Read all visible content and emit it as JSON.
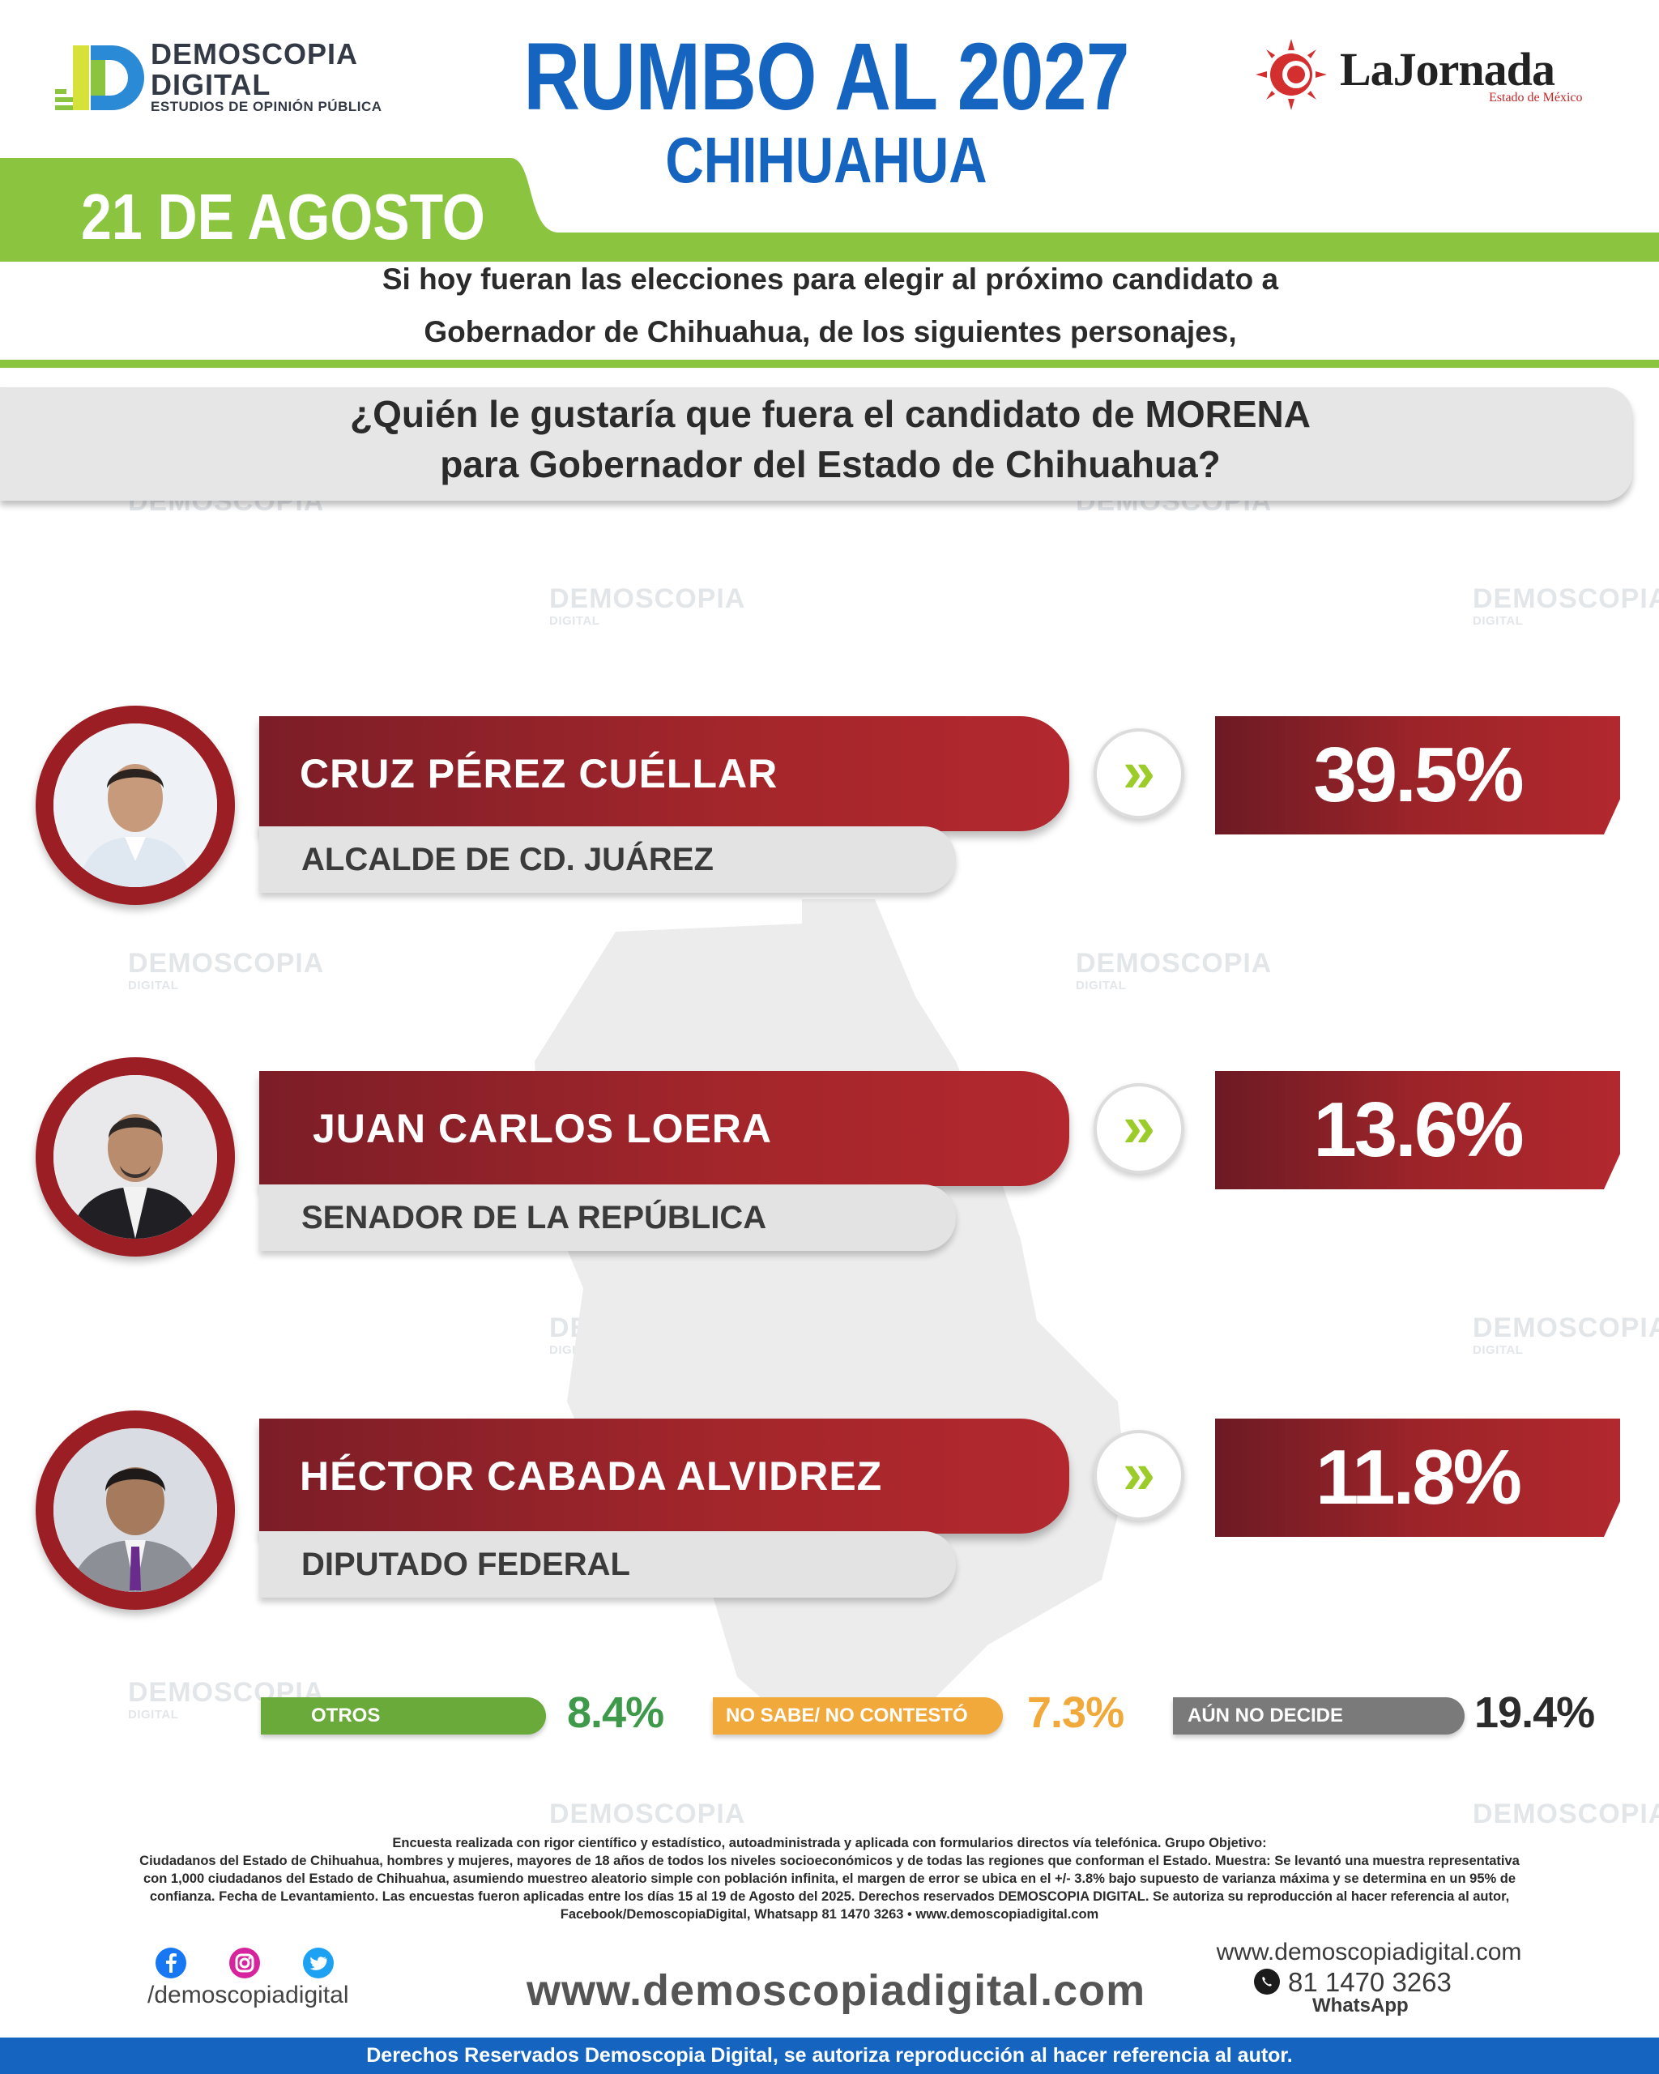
{
  "header": {
    "brand_name_line1": "DEMOSCOPIA",
    "brand_name_line2": "DIGITAL",
    "brand_tagline": "ESTUDIOS DE OPINIÓN PÚBLICA",
    "title": "RUMBO AL 2027",
    "subtitle": "CHIHUAHUA",
    "partner_name": "LaJornada",
    "partner_tagline": "Estado de México",
    "date": "21 DE AGOSTO"
  },
  "intro": {
    "line1": "Si hoy fueran las elecciones para elegir al próximo candidato a",
    "line2": "Gobernador de Chihuahua, de los siguientes personajes,"
  },
  "question": {
    "line1": "¿Quién le gustaría que fuera el candidato de MORENA",
    "line2": "para Gobernador del Estado de Chihuahua?"
  },
  "candidates": [
    {
      "name": "CRUZ PÉREZ CUÉLLAR",
      "role": "ALCALDE DE CD. JUÁREZ",
      "value_label": "39.5%"
    },
    {
      "name": "JUAN CARLOS LOERA",
      "role": "SENADOR DE LA REPÚBLICA",
      "value_label": "13.6%"
    },
    {
      "name": "HÉCTOR CABADA ALVIDREZ",
      "role": "DIPUTADO FEDERAL",
      "value_label": "11.8%"
    }
  ],
  "others": [
    {
      "label": "OTROS",
      "value_label": "8.4%",
      "color": "#6aaa3a"
    },
    {
      "label": "NO SABE/ NO CONTESTÓ",
      "value_label": "7.3%",
      "color": "#f2a93b"
    },
    {
      "label": "AÚN NO DECIDE",
      "value_label": "19.4%",
      "color": "#7a7a7a"
    }
  ],
  "arrow_glyph": "»",
  "methodology": {
    "line1": "Encuesta realizada con rigor científico y estadístico, autoadministrada y aplicada con formularios directos vía telefónica. Grupo Objetivo:",
    "line2": "Ciudadanos del Estado de Chihuahua, hombres y mujeres, mayores de 18 años de todos los niveles socioeconómicos y de todas las regiones que conforman el Estado. Muestra: Se levantó una muestra representativa",
    "line3": "con 1,000 ciudadanos del Estado de Chihuahua, asumiendo muestreo aleatorio simple con población infinita, el margen de error se ubica en el +/- 3.8% bajo supuesto de varianza máxima y se determina en un 95% de",
    "line4": "confianza. Fecha de Levantamiento. Las encuestas fueron aplicadas entre los días 15 al 19 de Agosto del 2025. Derechos reservados DEMOSCOPIA DIGITAL. Se autoriza su reproducción al hacer referencia al autor,",
    "line5": "Facebook/DemoscopiaDigital, Whatsapp 81 1470 3263 • www.demoscopiadigital.com"
  },
  "footer": {
    "social_handle": "/demoscopiadigital",
    "website_big": "www.demoscopiadigital.com",
    "website_small": "www.demoscopiadigital.com",
    "phone": "81 1470 3263",
    "phone_label": "WhatsApp",
    "rights": "Derechos Reservados Demoscopia Digital, se autoriza reproducción al hacer referencia al autor."
  },
  "colors": {
    "title_blue": "#1565c0",
    "accent_green": "#8bc53f",
    "bar_red": "#a4262b",
    "arrow_green": "#9ccc2a"
  },
  "chart_data": {
    "type": "bar",
    "categories": [
      "CRUZ PÉREZ CUÉLLAR",
      "JUAN CARLOS LOERA",
      "HÉCTOR CABADA ALVIDREZ",
      "OTROS",
      "NO SABE/ NO CONTESTÓ",
      "AÚN NO DECIDE"
    ],
    "values": [
      39.5,
      13.6,
      11.8,
      8.4,
      7.3,
      19.4
    ],
    "title": "RUMBO AL 2027",
    "subtitle": "CHIHUAHUA",
    "unit": "%"
  }
}
